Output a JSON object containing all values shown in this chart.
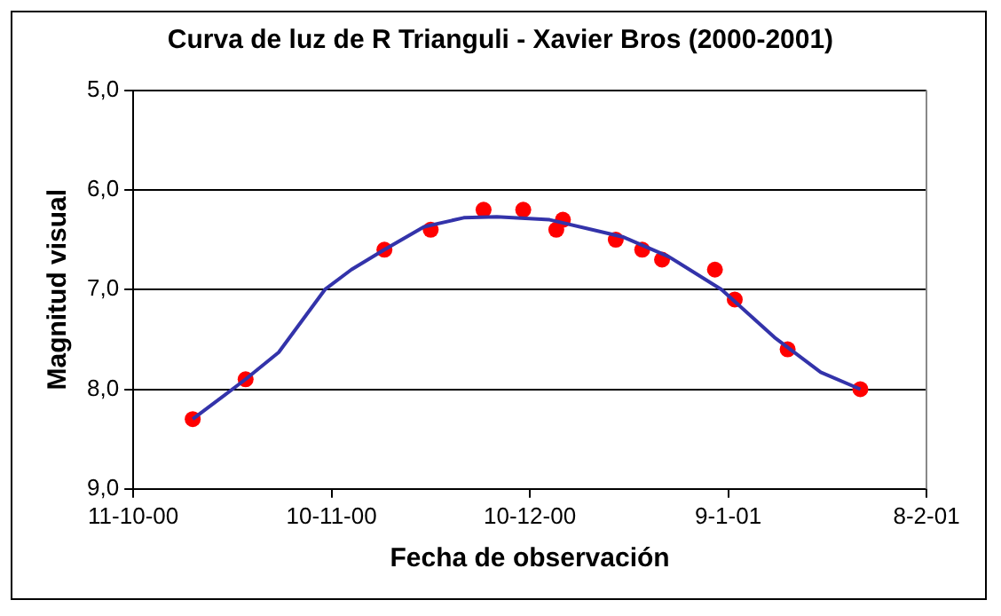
{
  "chart_data": {
    "type": "scatter",
    "title": "Curva de luz de R Trianguli - Xavier Bros (2000-2001)",
    "xlabel": "Fecha de observación",
    "ylabel": "Magnitud visual",
    "xlim": [
      "2000-10-11",
      "2001-02-08"
    ],
    "xticks": [
      {
        "value": "2000-10-11",
        "label": "11-10-00"
      },
      {
        "value": "2000-11-10",
        "label": "10-11-00"
      },
      {
        "value": "2000-12-10",
        "label": "10-12-00"
      },
      {
        "value": "2001-01-09",
        "label": "9-1-01"
      },
      {
        "value": "2001-02-08",
        "label": "8-2-01"
      }
    ],
    "ylim": [
      9,
      5
    ],
    "yticks": [
      {
        "value": 5,
        "label": "5,0"
      },
      {
        "value": 6,
        "label": "6,0"
      },
      {
        "value": 7,
        "label": "7,0"
      },
      {
        "value": 8,
        "label": "8,0"
      },
      {
        "value": 9,
        "label": "9,0"
      }
    ],
    "grid": "y",
    "legend": false,
    "series": [
      {
        "type": "line",
        "color": "#3333aa",
        "marker": "none",
        "line_style": "solid",
        "x": [
          "2000-10-20",
          "2000-10-28",
          "2000-11-02",
          "2000-11-09",
          "2000-11-13",
          "2000-11-18",
          "2000-11-24",
          "2000-11-30",
          "2000-12-05",
          "2000-12-13",
          "2000-12-24",
          "2000-12-31",
          "2001-01-08",
          "2001-01-16",
          "2001-01-23",
          "2001-01-29"
        ],
        "values": [
          8.3,
          7.9,
          7.63,
          7.0,
          6.8,
          6.6,
          6.37,
          6.28,
          6.27,
          6.3,
          6.47,
          6.67,
          7.0,
          7.48,
          7.83,
          8.0
        ]
      },
      {
        "color": "#ff0000",
        "marker": "circle",
        "x": [
          "2000-10-20",
          "2000-10-28",
          "2000-11-18",
          "2000-11-25",
          "2000-12-03",
          "2000-12-09",
          "2000-12-14",
          "2000-12-15",
          "2000-12-23",
          "2000-12-27",
          "2000-12-30",
          "2001-01-07",
          "2001-01-10",
          "2001-01-18",
          "2001-01-29"
        ],
        "values": [
          8.3,
          7.9,
          6.6,
          6.4,
          6.2,
          6.2,
          6.4,
          6.3,
          6.5,
          6.6,
          6.7,
          6.8,
          7.1,
          7.6,
          8.0
        ]
      }
    ]
  }
}
